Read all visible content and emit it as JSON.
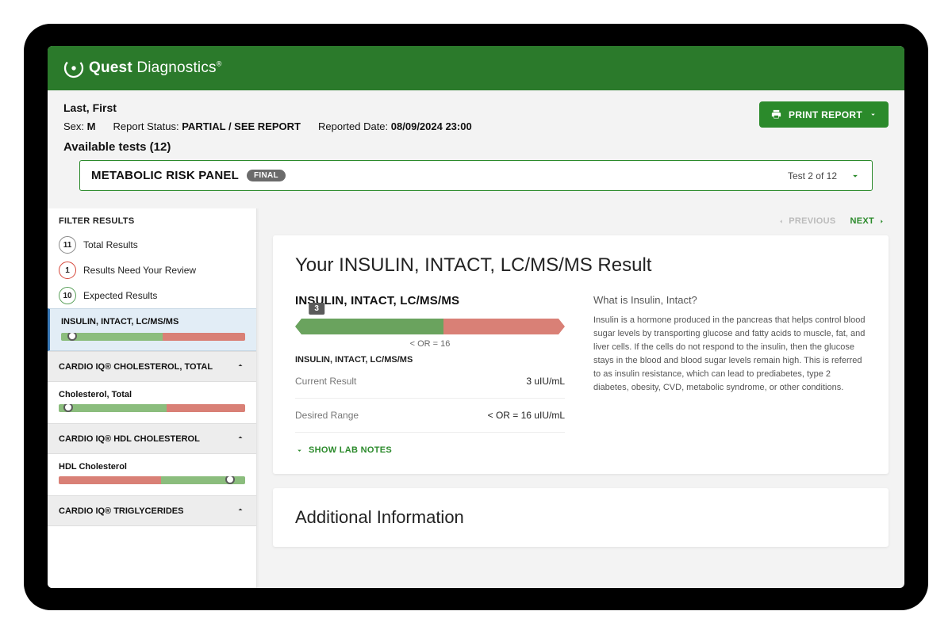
{
  "brand": {
    "bold": "Quest",
    "light": " Diagnostics"
  },
  "colors": {
    "brand_green": "#2b7a2b",
    "action_green": "#2b8a2b",
    "strip_green": "#8bbd7d",
    "strip_green_dark": "#6aa35e",
    "strip_red": "#d98076",
    "marker_gray": "#5a5a5a",
    "badge_gray": "#6b6b6b",
    "page_bg": "#f3f3f3",
    "active_bg": "#e2edf6",
    "active_border": "#3a7ab8",
    "badge_red": "#d6473a"
  },
  "print_label": "PRINT REPORT",
  "patient": {
    "name": "Last, First",
    "sex_label": "Sex:",
    "sex_value": "M",
    "status_label": "Report Status:",
    "status_value": "PARTIAL / SEE REPORT",
    "reported_label": "Reported Date:",
    "reported_value": "08/09/2024 23:00"
  },
  "available_label": "Available tests (12)",
  "panel": {
    "title": "METABOLIC RISK PANEL",
    "badge": "FINAL",
    "counter": "Test 2 of 12"
  },
  "filter": {
    "header": "FILTER RESULTS",
    "rows": [
      {
        "count": "11",
        "label": "Total Results",
        "style": "default"
      },
      {
        "count": "1",
        "label": "Results Need Your Review",
        "style": "red"
      },
      {
        "count": "10",
        "label": "Expected Results",
        "style": "green"
      }
    ]
  },
  "sidebar_active": {
    "name": "INSULIN, INTACT, LC/MS/MS",
    "strip": {
      "green_pct": 55,
      "red_pct": 45,
      "marker_pct": 6
    }
  },
  "sidebar_groups": [
    {
      "title": "CARDIO IQ® CHOLESTEROL, TOTAL",
      "sublabel": "Cholesterol, Total",
      "strip": {
        "segments": [
          {
            "color": "#8bbd7d",
            "pct": 58
          },
          {
            "color": "#d98076",
            "pct": 42
          }
        ],
        "marker_pct": 5
      }
    },
    {
      "title": "CARDIO IQ® HDL CHOLESTEROL",
      "sublabel": "HDL Cholesterol",
      "strip": {
        "segments": [
          {
            "color": "#d98076",
            "pct": 55
          },
          {
            "color": "#8bbd7d",
            "pct": 45
          }
        ],
        "marker_pct": 92
      }
    },
    {
      "title": "CARDIO IQ® TRIGLYCERIDES",
      "sublabel": "",
      "strip": null
    }
  ],
  "nav": {
    "prev": "PREVIOUS",
    "next": "NEXT"
  },
  "result": {
    "title": "Your INSULIN, INTACT, LC/MS/MS Result",
    "test_name": "INSULIN, INTACT, LC/MS/MS",
    "value_tag": "3",
    "value_marker_pct": 8,
    "strip": {
      "green_pct": 55,
      "red_pct": 45
    },
    "range_under": "< OR = 16",
    "subcaption": "INSULIN, INTACT, LC/MS/MS",
    "current_label": "Current Result",
    "current_value": "3 uIU/mL",
    "desired_label": "Desired Range",
    "desired_value": "< OR = 16 uIU/mL",
    "show_notes": "SHOW LAB NOTES",
    "info_header": "What is Insulin, Intact?",
    "info_body": "Insulin is a hormone produced in the pancreas that helps control blood sugar levels by transporting glucose and fatty acids to muscle, fat, and liver cells. If the cells do not respond to the insulin, then the glucose stays in the blood and blood sugar levels remain high. This is referred to as insulin resistance, which can lead to prediabetes, type 2 diabetes, obesity, CVD, metabolic syndrome, or other conditions."
  },
  "additional_title": "Additional Information"
}
